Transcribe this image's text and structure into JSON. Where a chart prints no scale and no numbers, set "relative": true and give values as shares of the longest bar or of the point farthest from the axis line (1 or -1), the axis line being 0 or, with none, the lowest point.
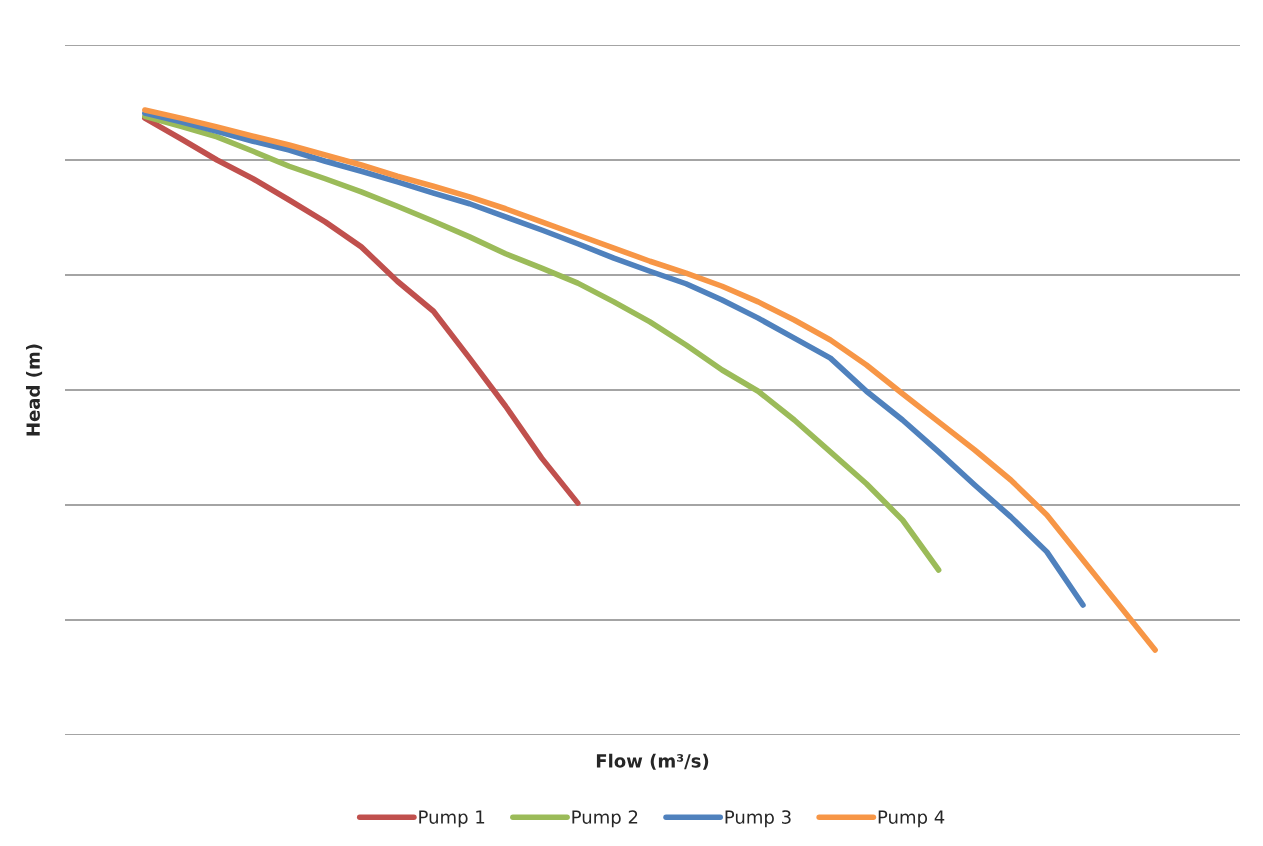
{
  "chart_data": {
    "type": "line",
    "xlabel": "Flow (m³/s)",
    "ylabel": "Head (m)",
    "relative": true,
    "grid": "y",
    "legend": "bottom",
    "marker": "none",
    "line_style": "solid",
    "categories": [
      null,
      null,
      null,
      null,
      null,
      null,
      null,
      null,
      null,
      null,
      null,
      null,
      null,
      null,
      null,
      null,
      null,
      null,
      null,
      null,
      null,
      null,
      null,
      null,
      null,
      null,
      null,
      null,
      null
    ],
    "series": [
      {
        "name": "Pump 1",
        "color": "#c0504d",
        "values": [
          0.987,
          0.954,
          0.92,
          0.89,
          0.856,
          0.821,
          0.781,
          0.726,
          0.678,
          0.603,
          0.526,
          0.443,
          0.371,
          null,
          null,
          null,
          null,
          null,
          null,
          null,
          null,
          null,
          null,
          null,
          null,
          null,
          null,
          null,
          null
        ]
      },
      {
        "name": "Pump 2",
        "color": "#9bbb59",
        "values": [
          0.99,
          0.974,
          0.957,
          0.934,
          0.91,
          0.89,
          0.869,
          0.846,
          0.822,
          0.797,
          0.77,
          0.747,
          0.723,
          0.693,
          0.661,
          0.624,
          0.584,
          0.55,
          0.504,
          0.453,
          0.402,
          0.344,
          0.264,
          null,
          null,
          null,
          null,
          null,
          null
        ]
      },
      {
        "name": "Pump 3",
        "color": "#4f81bd",
        "values": [
          0.995,
          0.981,
          0.966,
          0.95,
          0.936,
          0.918,
          0.902,
          0.885,
          0.867,
          0.85,
          0.829,
          0.808,
          0.786,
          0.763,
          0.742,
          0.722,
          0.696,
          0.667,
          0.635,
          0.603,
          0.55,
          0.504,
          0.453,
          0.4,
          0.349,
          0.293,
          0.208,
          null,
          null
        ]
      },
      {
        "name": "Pump 4",
        "color": "#f79646",
        "values": [
          1.0,
          0.987,
          0.973,
          0.958,
          0.944,
          0.928,
          0.912,
          0.894,
          0.878,
          0.861,
          0.842,
          0.821,
          0.8,
          0.779,
          0.758,
          0.739,
          0.718,
          0.693,
          0.664,
          0.632,
          0.592,
          0.546,
          0.501,
          0.456,
          0.408,
          0.352,
          0.28,
          0.208,
          0.136
        ]
      }
    ]
  }
}
